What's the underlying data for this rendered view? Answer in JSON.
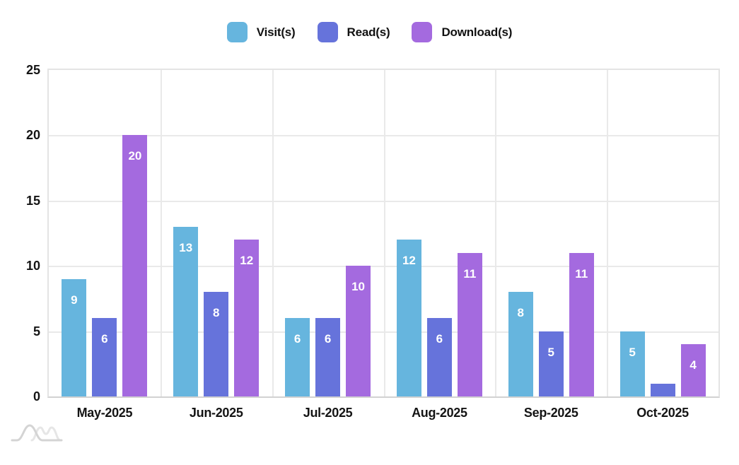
{
  "chart_data": {
    "type": "bar",
    "title": "",
    "xlabel": "",
    "ylabel": "",
    "categories": [
      "May-2025",
      "Jun-2025",
      "Jul-2025",
      "Aug-2025",
      "Sep-2025",
      "Oct-2025"
    ],
    "series": [
      {
        "name": "Visit(s)",
        "color": "#66B5DE",
        "values": [
          9,
          13,
          6,
          12,
          8,
          5
        ]
      },
      {
        "name": "Read(s)",
        "color": "#6673DB",
        "values": [
          6,
          8,
          6,
          6,
          5,
          1
        ]
      },
      {
        "name": "Download(s)",
        "color": "#A46ADF",
        "values": [
          20,
          12,
          10,
          11,
          11,
          4
        ]
      }
    ],
    "ylim": [
      0,
      25
    ],
    "yticks": [
      "0",
      "5",
      "10",
      "15",
      "20",
      "25"
    ],
    "grid": true,
    "legend_position": "top",
    "bar_value_labels_shown": true
  },
  "theme": {
    "background": "#ffffff",
    "grid_color": "#e9e9e9",
    "plot_border_color": "#e4e4e4",
    "axis_line_color": "#d2d2d2",
    "tick_text_color": "#141414",
    "bar_label_color": "#ffffff",
    "watermark_color_front": "#d4d4d4",
    "watermark_color_back": "#e6e6e6"
  },
  "watermark": {
    "icon": "dual-bell-curve-logo"
  }
}
